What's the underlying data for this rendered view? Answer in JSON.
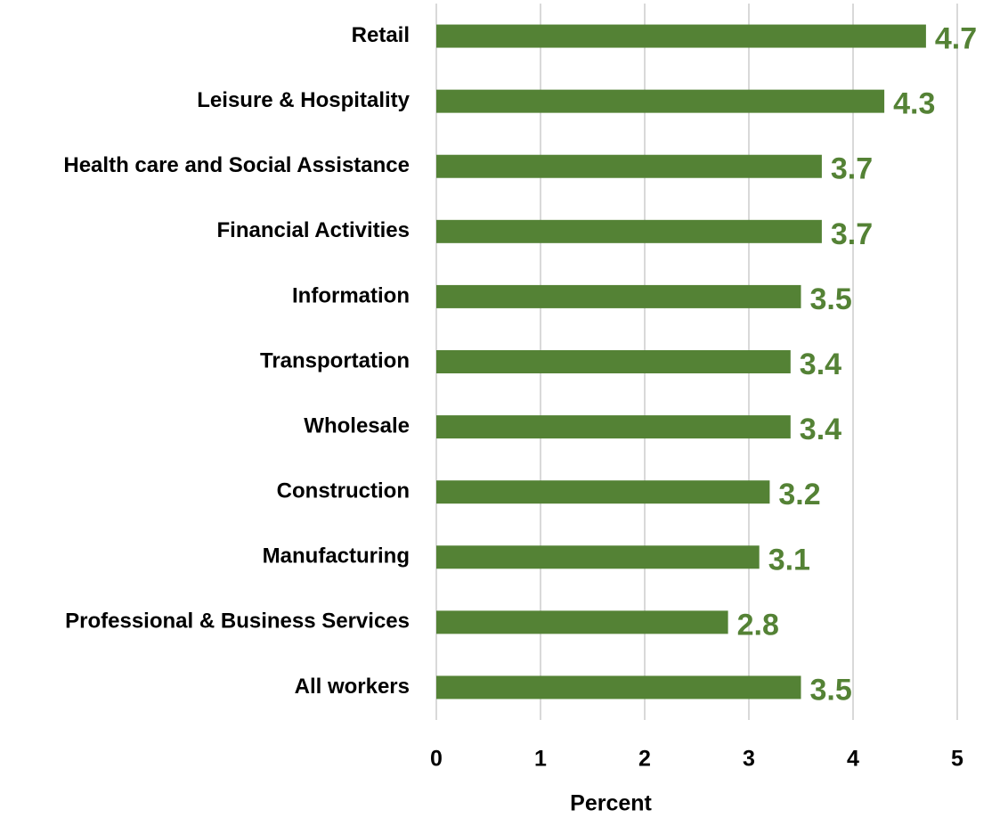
{
  "chart_data": {
    "type": "bar",
    "orientation": "horizontal",
    "categories": [
      "Retail",
      "Leisure & Hospitality",
      "Health care and Social Assistance",
      "Financial Activities",
      "Information",
      "Transportation",
      "Wholesale",
      "Construction",
      "Manufacturing",
      "Professional & Business Services",
      "All workers"
    ],
    "values": [
      4.7,
      4.3,
      3.7,
      3.7,
      3.5,
      3.4,
      3.4,
      3.2,
      3.1,
      2.8,
      3.5
    ],
    "color": "#548235",
    "x_label": "Percent",
    "xlim": [
      0,
      5
    ],
    "xticks": [
      0,
      1,
      2,
      3,
      4,
      5
    ],
    "grid": true
  }
}
